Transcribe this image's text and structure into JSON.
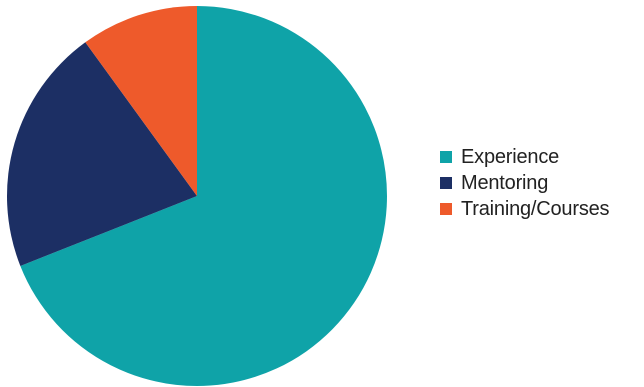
{
  "chart_data": {
    "type": "pie",
    "title": "",
    "start_angle_deg": 0,
    "direction": "clockwise",
    "slices": [
      {
        "label": "Experience",
        "value": 69,
        "color": "#0fa3a8"
      },
      {
        "label": "Mentoring",
        "value": 21,
        "color": "#1c2f64"
      },
      {
        "label": "Training/Courses",
        "value": 10,
        "color": "#ee5a2b"
      }
    ],
    "legend_position": "right"
  }
}
